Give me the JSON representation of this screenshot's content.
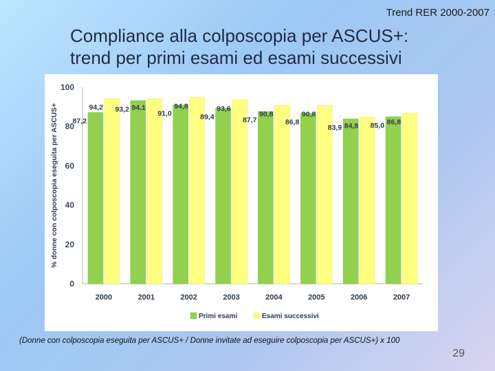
{
  "slide": {
    "header": "Trend RER 2000-2007",
    "title_line1": "Compliance alla colposcopia per ASCUS+:",
    "title_line2": "trend per primi esami ed esami successivi",
    "footnote": "(Donne con  colposcopia eseguita per ASCUS+ / Donne invitate ad eseguire colposcopia per ASCUS+) x 100",
    "page_number": "29"
  },
  "colors": {
    "primi": "#92d050",
    "successivi": "#ffff80"
  },
  "chart_data": {
    "type": "bar",
    "title": "",
    "xlabel": "",
    "ylabel": "% donne con colposcopia eseguita per ASCUS+",
    "ylim": [
      0,
      100
    ],
    "yticks": [
      0,
      20,
      40,
      60,
      80,
      100
    ],
    "categories": [
      "2000",
      "2001",
      "2002",
      "2003",
      "2004",
      "2005",
      "2006",
      "2007"
    ],
    "series": [
      {
        "name": "Primi esami",
        "values": [
          87.2,
          93.2,
          91.0,
          89.4,
          87.7,
          86.8,
          83.9,
          85.0
        ],
        "labels": [
          "87,2",
          "93,2",
          "91,0",
          "89,4",
          "87,7",
          "86,8",
          "83,9",
          "85,0"
        ]
      },
      {
        "name": "Esami successivi",
        "values": [
          94.2,
          94.1,
          94.8,
          93.6,
          90.8,
          90.8,
          84.8,
          86.8
        ],
        "labels": [
          "94,2",
          "94.1",
          "94,8",
          "93,6",
          "90,8",
          "90,8",
          "84,8",
          "86,8"
        ]
      }
    ],
    "legend_position": "bottom"
  }
}
